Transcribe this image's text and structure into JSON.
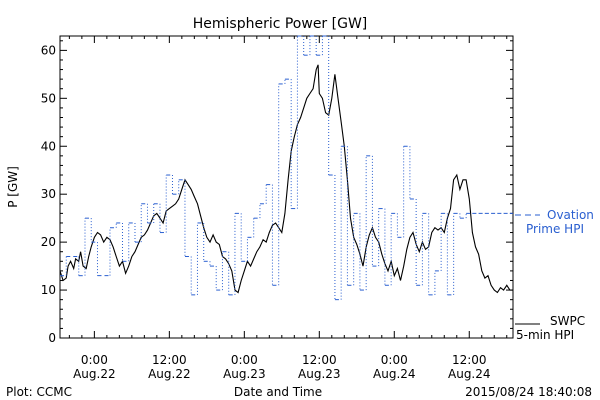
{
  "chart_data": {
    "type": "line",
    "title": "Hemispheric Power [GW]",
    "xlabel": "Date and Time",
    "ylabel": "P [GW]",
    "ylim": [
      0,
      63
    ],
    "xlim": [
      -5.5,
      67
    ],
    "yticks": [
      0,
      10,
      20,
      30,
      40,
      50,
      60
    ],
    "xticks": [
      {
        "x": 0,
        "time": "0:00",
        "date": "Aug.22"
      },
      {
        "x": 12,
        "time": "12:00",
        "date": "Aug.22"
      },
      {
        "x": 24,
        "time": "0:00",
        "date": "Aug.23"
      },
      {
        "x": 36,
        "time": "12:00",
        "date": "Aug.23"
      },
      {
        "x": 48,
        "time": "0:00",
        "date": "Aug.24"
      },
      {
        "x": 60,
        "time": "12:00",
        "date": "Aug.24"
      }
    ],
    "series": [
      {
        "name": "SWPC 5-min HPI",
        "style": "solid",
        "color": "#000000",
        "points": [
          [
            -5.5,
            14
          ],
          [
            -5.0,
            12
          ],
          [
            -4.5,
            12.5
          ],
          [
            -4.2,
            15
          ],
          [
            -3.8,
            16
          ],
          [
            -3.3,
            14.5
          ],
          [
            -3.0,
            16.5
          ],
          [
            -2.5,
            16
          ],
          [
            -2.2,
            18
          ],
          [
            -1.8,
            15
          ],
          [
            -1.3,
            14.5
          ],
          [
            -0.9,
            17
          ],
          [
            -0.5,
            19
          ],
          [
            0,
            21
          ],
          [
            0.5,
            22
          ],
          [
            1,
            21.5
          ],
          [
            1.5,
            20
          ],
          [
            2,
            21
          ],
          [
            2.5,
            20.5
          ],
          [
            3,
            19
          ],
          [
            3.5,
            17
          ],
          [
            4,
            15
          ],
          [
            4.5,
            16
          ],
          [
            5,
            13.5
          ],
          [
            5.5,
            15
          ],
          [
            6,
            17
          ],
          [
            6.5,
            18
          ],
          [
            7,
            19.5
          ],
          [
            7.5,
            21
          ],
          [
            8,
            21.5
          ],
          [
            8.5,
            22.5
          ],
          [
            9,
            24
          ],
          [
            9.5,
            25.5
          ],
          [
            10,
            26
          ],
          [
            10.5,
            25
          ],
          [
            11,
            24
          ],
          [
            11.5,
            26.5
          ],
          [
            12,
            27
          ],
          [
            12.5,
            27.5
          ],
          [
            13,
            28
          ],
          [
            13.5,
            29
          ],
          [
            14,
            31
          ],
          [
            14.5,
            33
          ],
          [
            15,
            32
          ],
          [
            15.5,
            31
          ],
          [
            16,
            29.5
          ],
          [
            16.5,
            28
          ],
          [
            17,
            25.5
          ],
          [
            17.5,
            23
          ],
          [
            18,
            21
          ],
          [
            18.5,
            20
          ],
          [
            19,
            21.5
          ],
          [
            19.5,
            20
          ],
          [
            20,
            19.5
          ],
          [
            20.5,
            17
          ],
          [
            21,
            16.5
          ],
          [
            21.5,
            15.5
          ],
          [
            22,
            14
          ],
          [
            22.5,
            10
          ],
          [
            23,
            9.5
          ],
          [
            23.5,
            12
          ],
          [
            24,
            14
          ],
          [
            24.5,
            16
          ],
          [
            25,
            15
          ],
          [
            25.5,
            16.5
          ],
          [
            26,
            18
          ],
          [
            26.5,
            19
          ],
          [
            27,
            20.5
          ],
          [
            27.5,
            20
          ],
          [
            28,
            22
          ],
          [
            28.5,
            23.5
          ],
          [
            29,
            24
          ],
          [
            29.5,
            23
          ],
          [
            30,
            22
          ],
          [
            30.5,
            26
          ],
          [
            31,
            33
          ],
          [
            31.5,
            39
          ],
          [
            32,
            42
          ],
          [
            32.5,
            44.5
          ],
          [
            33,
            46
          ],
          [
            33.5,
            48
          ],
          [
            34,
            50
          ],
          [
            34.5,
            51
          ],
          [
            35,
            52
          ],
          [
            35.5,
            56
          ],
          [
            35.8,
            57
          ],
          [
            36,
            51
          ],
          [
            36.5,
            50
          ],
          [
            37,
            47
          ],
          [
            37.5,
            46.5
          ],
          [
            38,
            50
          ],
          [
            38.5,
            55
          ],
          [
            39,
            50
          ],
          [
            39.5,
            45
          ],
          [
            40,
            40
          ],
          [
            40.5,
            33
          ],
          [
            41,
            25
          ],
          [
            41.5,
            21
          ],
          [
            42,
            19.5
          ],
          [
            42.5,
            17.5
          ],
          [
            43,
            15
          ],
          [
            43.5,
            19
          ],
          [
            44,
            21.5
          ],
          [
            44.5,
            23
          ],
          [
            45,
            21
          ],
          [
            45.5,
            20
          ],
          [
            46,
            17.5
          ],
          [
            46.5,
            15.5
          ],
          [
            47,
            14
          ],
          [
            47.5,
            16
          ],
          [
            48,
            13
          ],
          [
            48.5,
            14.5
          ],
          [
            49,
            12
          ],
          [
            49.5,
            15
          ],
          [
            50,
            18.5
          ],
          [
            50.5,
            21
          ],
          [
            51,
            22
          ],
          [
            51.5,
            19.5
          ],
          [
            52,
            18
          ],
          [
            52.5,
            20
          ],
          [
            53,
            18.5
          ],
          [
            53.5,
            19
          ],
          [
            54,
            22
          ],
          [
            54.5,
            23
          ],
          [
            55,
            22.5
          ],
          [
            55.5,
            23
          ],
          [
            56,
            22
          ],
          [
            56.5,
            25
          ],
          [
            57,
            27
          ],
          [
            57.5,
            33
          ],
          [
            58,
            34
          ],
          [
            58.5,
            31
          ],
          [
            59,
            33
          ],
          [
            59.5,
            33
          ],
          [
            60,
            29
          ],
          [
            60.5,
            22
          ],
          [
            61,
            19
          ],
          [
            61.5,
            17.5
          ],
          [
            62,
            14
          ],
          [
            62.5,
            12.5
          ],
          [
            63,
            13
          ],
          [
            63.5,
            11
          ],
          [
            64,
            10
          ],
          [
            64.5,
            9.5
          ],
          [
            65,
            10.5
          ],
          [
            65.5,
            10
          ],
          [
            66,
            11
          ],
          [
            66.5,
            10
          ],
          [
            67,
            10
          ]
        ]
      },
      {
        "name": "Ovation Prime HPI",
        "style": "dashed-step",
        "color": "#2a5fd0",
        "points": [
          [
            -5.5,
            13
          ],
          [
            -4.5,
            17
          ],
          [
            -2.5,
            13
          ],
          [
            -1.5,
            25
          ],
          [
            -0.5,
            20
          ],
          [
            0.5,
            13
          ],
          [
            2.5,
            23
          ],
          [
            3.5,
            24
          ],
          [
            4.5,
            16
          ],
          [
            5.5,
            24
          ],
          [
            6.5,
            20
          ],
          [
            7.5,
            28
          ],
          [
            8.5,
            24
          ],
          [
            9.5,
            28
          ],
          [
            10.5,
            22
          ],
          [
            11.5,
            34
          ],
          [
            12.5,
            30
          ],
          [
            13.5,
            33
          ],
          [
            14.5,
            17
          ],
          [
            15.5,
            9
          ],
          [
            16.5,
            24
          ],
          [
            17.5,
            16
          ],
          [
            18.5,
            15
          ],
          [
            19.5,
            10
          ],
          [
            20.5,
            18
          ],
          [
            21.5,
            9
          ],
          [
            22.5,
            26
          ],
          [
            23.5,
            16
          ],
          [
            24.5,
            21
          ],
          [
            25.5,
            25
          ],
          [
            26.5,
            28
          ],
          [
            27.5,
            32
          ],
          [
            28.5,
            11
          ],
          [
            29.5,
            53
          ],
          [
            30.5,
            54
          ],
          [
            31.5,
            27
          ],
          [
            32.5,
            63
          ],
          [
            33.5,
            59
          ],
          [
            34.5,
            63
          ],
          [
            35.5,
            59
          ],
          [
            36.5,
            63
          ],
          [
            37.5,
            34
          ],
          [
            38.5,
            8
          ],
          [
            39.5,
            40
          ],
          [
            40.5,
            11
          ],
          [
            41.5,
            26
          ],
          [
            42.5,
            10
          ],
          [
            43.5,
            38
          ],
          [
            44.5,
            15
          ],
          [
            45.5,
            27
          ],
          [
            46.5,
            11
          ],
          [
            47.5,
            26
          ],
          [
            48.5,
            21
          ],
          [
            49.5,
            40
          ],
          [
            50.5,
            29
          ],
          [
            51.5,
            11
          ],
          [
            52.5,
            26
          ],
          [
            53.5,
            9
          ],
          [
            54.5,
            14
          ],
          [
            55.5,
            26
          ],
          [
            56.5,
            9
          ],
          [
            57.5,
            26
          ],
          [
            58.5,
            25
          ],
          [
            59.5,
            26
          ],
          [
            60.5,
            26
          ],
          [
            61.5,
            26
          ],
          [
            62.5,
            26
          ],
          [
            63.5,
            26
          ],
          [
            64.5,
            26
          ],
          [
            65.5,
            26
          ],
          [
            66.5,
            26
          ],
          [
            67,
            26
          ]
        ]
      }
    ],
    "legend": {
      "placement": "right",
      "ovation_line1": "Ovation",
      "ovation_line2": "Prime HPI",
      "swpc_line1": "SWPC",
      "swpc_line2": "5-min HPI",
      "ovation_color": "#2a5fd0",
      "swpc_color": "#000000"
    }
  },
  "footer": {
    "left": "Plot: CCMC",
    "right": "2015/08/24 18:40:08"
  }
}
